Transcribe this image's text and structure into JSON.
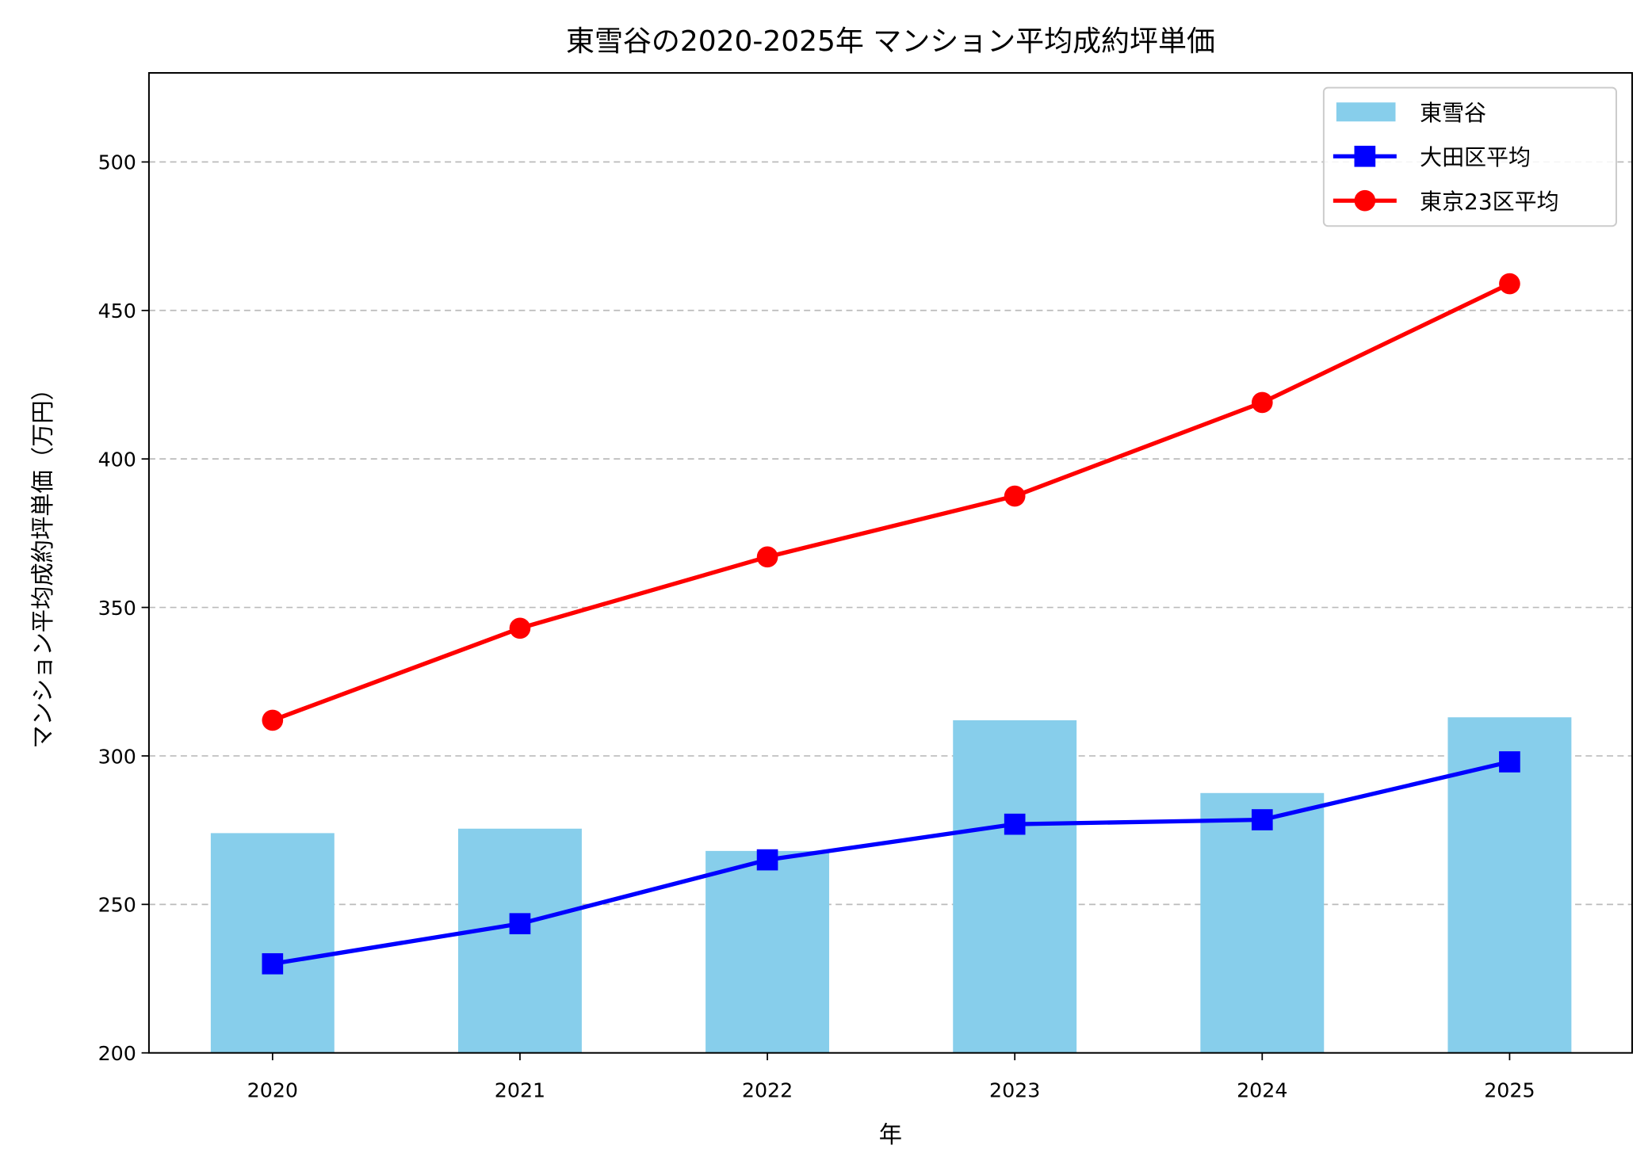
{
  "chart_data": {
    "type": "bar+line",
    "title": "東雪谷の2020-2025年 マンション平均成約坪単価",
    "xlabel": "年",
    "ylabel": "マンション平均成約坪単価（万円）",
    "categories": [
      "2020",
      "2021",
      "2022",
      "2023",
      "2024",
      "2025"
    ],
    "ylim": [
      200,
      530
    ],
    "yticks": [
      200,
      250,
      300,
      350,
      400,
      450,
      500
    ],
    "grid": "y dashed",
    "legend_position": "top-right",
    "series": [
      {
        "name": "東雪谷",
        "kind": "bar",
        "color": "#87CEEB",
        "values": [
          274,
          275.5,
          268,
          312,
          287.5,
          313
        ]
      },
      {
        "name": "大田区平均",
        "kind": "line",
        "marker": "square",
        "color": "#0000FF",
        "values": [
          230,
          243.5,
          265,
          277,
          278.5,
          298
        ]
      },
      {
        "name": "東京23区平均",
        "kind": "line",
        "marker": "circle",
        "color": "#FF0000",
        "values": [
          312,
          343,
          367,
          387.5,
          419,
          459
        ]
      }
    ]
  }
}
